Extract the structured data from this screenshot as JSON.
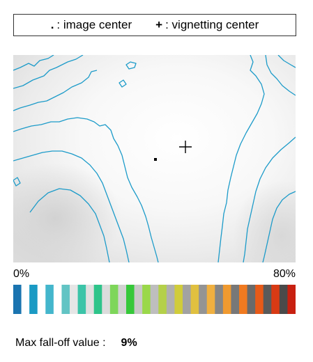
{
  "legend": {
    "image_center": {
      "symbol": ".",
      "label": ": image center"
    },
    "vignetting_center": {
      "symbol": "+",
      "label": ": vignetting center"
    }
  },
  "scale": {
    "min_label": "0%",
    "max_label": "80%"
  },
  "colorbar_colors": [
    "#1a74b0",
    "#ffffff",
    "#1a9ac4",
    "#ffffff",
    "#44b6cc",
    "#ffffff",
    "#62c4c4",
    "#e6e6e6",
    "#3cc4a8",
    "#e0e0e0",
    "#2ec48a",
    "#dcdcdc",
    "#7ed65a",
    "#d2d2d2",
    "#36c83a",
    "#c8c8c8",
    "#9ad84a",
    "#bebebe",
    "#b4d04a",
    "#b0b0b0",
    "#d0cc3a",
    "#a2a2a2",
    "#e0c040",
    "#949494",
    "#f0b040",
    "#868686",
    "#f09a30",
    "#787878",
    "#f07a20",
    "#6a6a6a",
    "#e85a18",
    "#5a5a5a",
    "#d83a14",
    "#4a4a4a",
    "#c82010"
  ],
  "contour_color": "#1c9bc9",
  "footer": {
    "label": "Max fall-off value :",
    "value": "9%"
  }
}
